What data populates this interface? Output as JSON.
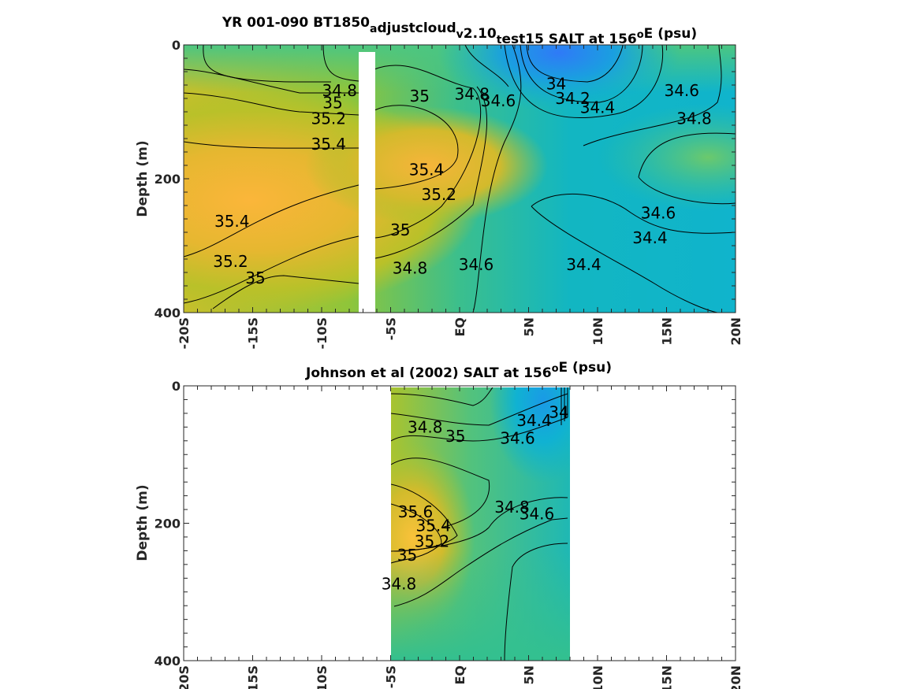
{
  "chart_data": [
    {
      "type": "heatmap",
      "subtype": "filled-contour",
      "title_parts": [
        {
          "text": "YR 001-090 BT1850"
        },
        {
          "text": "a",
          "baseline": "sub"
        },
        {
          "text": "djustcloud"
        },
        {
          "text": "v",
          "baseline": "sub"
        },
        {
          "text": "2.10"
        },
        {
          "text": "t",
          "baseline": "sub"
        },
        {
          "text": "est15 SALT at 156"
        },
        {
          "text": "o",
          "baseline": "super"
        },
        {
          "text": "E (psu)"
        }
      ],
      "ylabel": "Depth (m)",
      "xlim": [
        -20,
        20
      ],
      "ylim": [
        0,
        400
      ],
      "y_reversed": true,
      "x_ticks": [
        -20,
        -15,
        -10,
        -5,
        0,
        5,
        10,
        15,
        20
      ],
      "x_tick_labels": [
        "-20S",
        "-15S",
        "-10S",
        "-5S",
        "EQ",
        "5N",
        "10N",
        "15N",
        "20N"
      ],
      "y_ticks": [
        0,
        200,
        400
      ],
      "y_tick_labels": [
        "0",
        "200",
        "400"
      ],
      "colormap": "parula",
      "color_range_psu": [
        33.8,
        35.8
      ],
      "grid": false,
      "missing_data_band_lat": [
        -7.2,
        -6.0
      ],
      "contour_labels": [
        {
          "text": "34.8",
          "x": -8.7,
          "y": 70
        },
        {
          "text": "35",
          "x": -9.2,
          "y": 88
        },
        {
          "text": "35.2",
          "x": -9.5,
          "y": 112
        },
        {
          "text": "35.4",
          "x": -9.5,
          "y": 150
        },
        {
          "text": "35.4",
          "x": -16.5,
          "y": 265
        },
        {
          "text": "35.2",
          "x": -16.6,
          "y": 325
        },
        {
          "text": "35",
          "x": -14.8,
          "y": 350
        },
        {
          "text": "35",
          "x": -2.9,
          "y": 78
        },
        {
          "text": "34.8",
          "x": 0.9,
          "y": 75
        },
        {
          "text": "34.6",
          "x": 2.8,
          "y": 85
        },
        {
          "text": "35.4",
          "x": -2.4,
          "y": 188
        },
        {
          "text": "35.2",
          "x": -1.5,
          "y": 225
        },
        {
          "text": "35",
          "x": -4.3,
          "y": 278
        },
        {
          "text": "34.8",
          "x": -3.6,
          "y": 335
        },
        {
          "text": "34.6",
          "x": 1.2,
          "y": 330
        },
        {
          "text": "34",
          "x": 7.0,
          "y": 60
        },
        {
          "text": "34.2",
          "x": 8.2,
          "y": 82
        },
        {
          "text": "34.4",
          "x": 10.0,
          "y": 95
        },
        {
          "text": "34.6",
          "x": 16.1,
          "y": 70
        },
        {
          "text": "34.8",
          "x": 17.0,
          "y": 112
        },
        {
          "text": "34.6",
          "x": 14.4,
          "y": 253
        },
        {
          "text": "34.4",
          "x": 13.8,
          "y": 290
        },
        {
          "text": "34.4",
          "x": 9.0,
          "y": 330
        }
      ]
    },
    {
      "type": "heatmap",
      "subtype": "filled-contour",
      "title_parts": [
        {
          "text": "Johnson et al (2002) SALT at 156"
        },
        {
          "text": "o",
          "baseline": "super"
        },
        {
          "text": "E (psu)"
        }
      ],
      "ylabel": "Depth (m)",
      "xlim": [
        -20,
        20
      ],
      "ylim": [
        0,
        400
      ],
      "y_reversed": true,
      "x_ticks": [
        -20,
        -15,
        -10,
        -5,
        0,
        5,
        10,
        15,
        20
      ],
      "x_tick_labels": [
        "-20S",
        "-15S",
        "-10S",
        "-5S",
        "EQ",
        "5N",
        "10N",
        "15N",
        "20N"
      ],
      "y_ticks": [
        0,
        200,
        400
      ],
      "y_tick_labels": [
        "0",
        "200",
        "400"
      ],
      "colormap": "parula",
      "color_range_psu": [
        33.8,
        35.8
      ],
      "grid": false,
      "data_lat_range": [
        -5,
        8
      ],
      "contour_labels": [
        {
          "text": "34.8",
          "x": -2.5,
          "y": 62
        },
        {
          "text": "35",
          "x": -0.3,
          "y": 75
        },
        {
          "text": "34.4",
          "x": 5.4,
          "y": 52
        },
        {
          "text": "34.6",
          "x": 4.2,
          "y": 78
        },
        {
          "text": "34",
          "x": 7.2,
          "y": 40
        },
        {
          "text": "35.6",
          "x": -3.2,
          "y": 185
        },
        {
          "text": "35.4",
          "x": -1.9,
          "y": 205
        },
        {
          "text": "35.2",
          "x": -2.0,
          "y": 228
        },
        {
          "text": "35",
          "x": -3.8,
          "y": 248
        },
        {
          "text": "34.8",
          "x": 3.8,
          "y": 178
        },
        {
          "text": "34.6",
          "x": 5.6,
          "y": 188
        },
        {
          "text": "34.8",
          "x": -4.4,
          "y": 290
        }
      ]
    }
  ]
}
